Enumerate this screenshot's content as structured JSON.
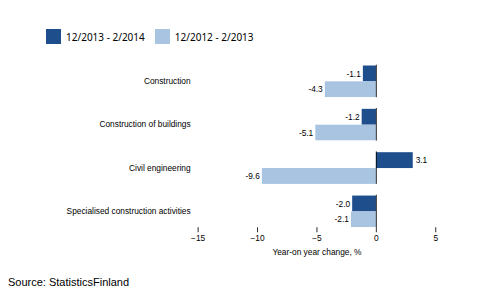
{
  "chart_data": {
    "type": "bar",
    "orientation": "horizontal",
    "categories": [
      "Construction",
      "Construction of buildings",
      "Civil engineering",
      "Specialised construction activities"
    ],
    "series": [
      {
        "name": "12/2013 - 2/2014",
        "color": "#1f4e8c",
        "values": [
          -1.1,
          -1.2,
          3.1,
          -2.0
        ],
        "value_labels": [
          "-1.1",
          "-1.2",
          "3.1",
          "-2.0"
        ]
      },
      {
        "name": "12/2012 - 2/2013",
        "color": "#a8c4e0",
        "values": [
          -4.3,
          -5.1,
          -9.6,
          -2.1
        ],
        "value_labels": [
          "-4.3",
          "-5.1",
          "-9.6",
          "-2.1"
        ]
      }
    ],
    "xlabel": "Year-on year change, %",
    "xlim": [
      -15,
      5
    ],
    "xticks": [
      -15,
      -10,
      -5,
      0,
      5
    ],
    "data_labels": true,
    "grid": false,
    "legend": "upper left",
    "source": "Source: StatisticsFinland"
  }
}
